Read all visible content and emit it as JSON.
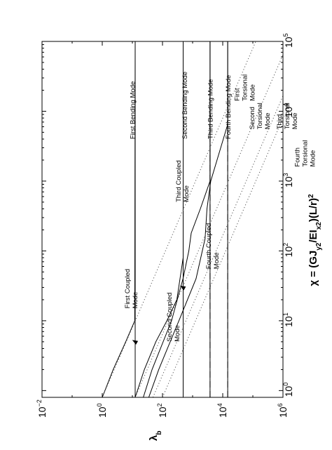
{
  "chart_data": {
    "type": "line",
    "orientation": "rotated-90-ccw",
    "x_scale": "log",
    "y_scale": "log",
    "xlim": [
      0.8,
      100000
    ],
    "ylim": [
      0.01,
      1000000
    ],
    "x_ticks": [
      {
        "base": "10",
        "exp": "0"
      },
      {
        "base": "10",
        "exp": "1"
      },
      {
        "base": "10",
        "exp": "2"
      },
      {
        "base": "10",
        "exp": "3"
      },
      {
        "base": "10",
        "exp": "4"
      },
      {
        "base": "10",
        "exp": "5"
      }
    ],
    "y_ticks": [
      {
        "base": "10",
        "exp": "−2"
      },
      {
        "base": "10",
        "exp": "0"
      },
      {
        "base": "10",
        "exp": "2"
      },
      {
        "base": "10",
        "exp": "4"
      },
      {
        "base": "10",
        "exp": "6"
      }
    ],
    "x_tick_values": [
      1,
      10,
      100,
      1000,
      10000,
      100000
    ],
    "y_tick_values": [
      0.01,
      1,
      100,
      10000,
      1000000
    ],
    "xlabel": {
      "prefix": "χ = (GJ",
      "sub1": "y2",
      "mid": "/EI",
      "sub2": "x2",
      "suffix": ")(L/r)",
      "sup": "2"
    },
    "ylabel": {
      "main": "λ",
      "sub": "b"
    },
    "grid": false,
    "legend": "none",
    "series": [
      {
        "name": "First Bending Mode",
        "style": "solid",
        "x": [
          0.8,
          100000
        ],
        "y": [
          12.4,
          12.4
        ]
      },
      {
        "name": "Second Bending Mode",
        "style": "solid",
        "x": [
          0.8,
          100000
        ],
        "y": [
          485,
          485
        ]
      },
      {
        "name": "Third Bending Mode",
        "style": "solid",
        "x": [
          0.8,
          100000
        ],
        "y": [
          3800,
          3800
        ]
      },
      {
        "name": "Fourth Bending Mode",
        "style": "solid",
        "x": [
          0.8,
          100000
        ],
        "y": [
          14600,
          14600
        ]
      },
      {
        "style": "dashed",
        "x": [
          0.8,
          20000
        ],
        "y": [
          12.4,
          12.4
        ]
      },
      {
        "style": "dashed",
        "x": [
          0.8,
          20000
        ],
        "y": [
          485,
          485
        ]
      },
      {
        "style": "dashed",
        "x": [
          0.8,
          20000
        ],
        "y": [
          3800,
          3800
        ]
      },
      {
        "style": "dashed",
        "x": [
          0.8,
          8000
        ],
        "y": [
          14600,
          14600
        ]
      },
      {
        "name": "First Coupled Mode",
        "style": "solid",
        "x": [
          0.8,
          2,
          5,
          10,
          100000
        ],
        "y": [
          1,
          2.3,
          6,
          12,
          12.4
        ]
      },
      {
        "name": "Second Coupled Mode",
        "style": "solid",
        "x": [
          0.8,
          2,
          5,
          10,
          20,
          80,
          100000
        ],
        "y": [
          12.4,
          25,
          60,
          140,
          300,
          485,
          485
        ]
      },
      {
        "name": "Third Coupled Mode",
        "style": "solid",
        "x": [
          0.8,
          2,
          10,
          40,
          100,
          180,
          400,
          1000,
          100000
        ],
        "y": [
          23,
          45,
          200,
          480,
          750,
          900,
          1800,
          3800,
          3800
        ]
      },
      {
        "name": "Fourth Coupled Mode",
        "style": "solid",
        "x": [
          0.8,
          2,
          10,
          40,
          150,
          400,
          1000,
          6500,
          100000
        ],
        "y": [
          35,
          75,
          350,
          1300,
          2600,
          3000,
          4000,
          14600,
          14600
        ]
      },
      {
        "name": "First Torsional Mode",
        "style": "dotted",
        "x": [
          0.8,
          100000
        ],
        "y": [
          1,
          125000
        ]
      },
      {
        "name": "Second Torsional Mode",
        "style": "dotted",
        "x": [
          0.8,
          100000
        ],
        "y": [
          12.4,
          1550000
        ]
      },
      {
        "name": "Third Torsional Mode",
        "style": "dotted",
        "x": [
          0.8,
          100000
        ],
        "y": [
          48,
          6000000
        ]
      },
      {
        "name": "Fourth Torsional Mode",
        "style": "dotted",
        "x": [
          0.8,
          100000
        ],
        "y": [
          100,
          12500000
        ]
      }
    ],
    "annotations": [
      {
        "id": "fourth-bending",
        "lines": [
          "Fourth Bending Mode"
        ],
        "x": 4000,
        "y": 18000,
        "rot": 90
      },
      {
        "id": "third-bending",
        "lines": [
          "Third Bending Mode"
        ],
        "x": 4000,
        "y": 4600,
        "rot": 90
      },
      {
        "id": "second-bending",
        "lines": [
          "Second Bending Mode"
        ],
        "x": 4000,
        "y": 650,
        "rot": 90
      },
      {
        "id": "first-bending",
        "lines": [
          "First Bending Mode"
        ],
        "x": 4000,
        "y": 12,
        "rot": 90
      },
      {
        "id": "first-torsional",
        "lines": [
          "First",
          "Torsional",
          "Mode"
        ],
        "x": 14000,
        "y": 35000,
        "rot": 90
      },
      {
        "id": "second-torsional",
        "lines": [
          "Second",
          "Torsional",
          "Mode"
        ],
        "x": 5500,
        "y": 110000,
        "rot": 90
      },
      {
        "id": "third-torsional",
        "lines": [
          "Third",
          "Torsional",
          "Mode"
        ],
        "x": 5500,
        "y": 900000,
        "rot": 90
      },
      {
        "id": "fourth-torsional",
        "lines": [
          "Fourth",
          "Torsional",
          "Mode"
        ],
        "x": 1600,
        "y": 3500000,
        "rot": 90
      },
      {
        "id": "third-coupled",
        "lines": [
          "Third Coupled",
          "Mode"
        ],
        "x": 500,
        "y": 400,
        "rot": 90
      },
      {
        "id": "fourth-coupled",
        "lines": [
          "Fourth Coupled",
          "Mode"
        ],
        "x": 55,
        "y": 4000,
        "rot": 90
      },
      {
        "id": "second-coupled",
        "lines": [
          "Second Coupled",
          "Mode"
        ],
        "x": 5,
        "y": 200,
        "rot": 90
      },
      {
        "id": "first-coupled",
        "lines": [
          "First Coupled",
          "Mode"
        ],
        "x": 15,
        "y": 8,
        "rot": 90
      }
    ]
  }
}
